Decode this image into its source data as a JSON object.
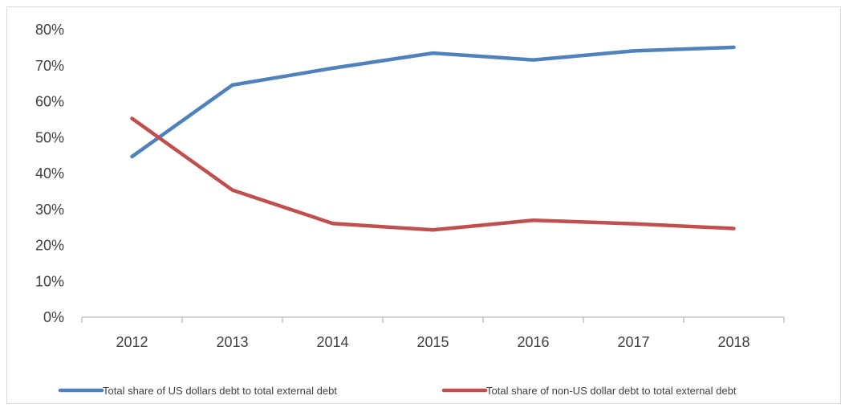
{
  "chart_data": {
    "type": "line",
    "title": "",
    "xlabel": "",
    "ylabel": "",
    "categories": [
      "2012",
      "2013",
      "2014",
      "2015",
      "2016",
      "2017",
      "2018"
    ],
    "y_ticks": [
      "0%",
      "10%",
      "20%",
      "30%",
      "40%",
      "50%",
      "60%",
      "70%",
      "80%"
    ],
    "ylim": [
      0,
      80
    ],
    "grid": false,
    "legend_position": "bottom",
    "series": [
      {
        "name": "Total share of US dollars debt to total external debt",
        "color": "#4f81bd",
        "values": [
          44.7,
          64.6,
          69.3,
          73.5,
          71.6,
          74.1,
          75.1
        ]
      },
      {
        "name": "Total share of non-US dollar debt to total external debt",
        "color": "#c0504d",
        "values": [
          55.3,
          35.4,
          26.1,
          24.3,
          27.0,
          26.0,
          24.7
        ]
      }
    ]
  }
}
